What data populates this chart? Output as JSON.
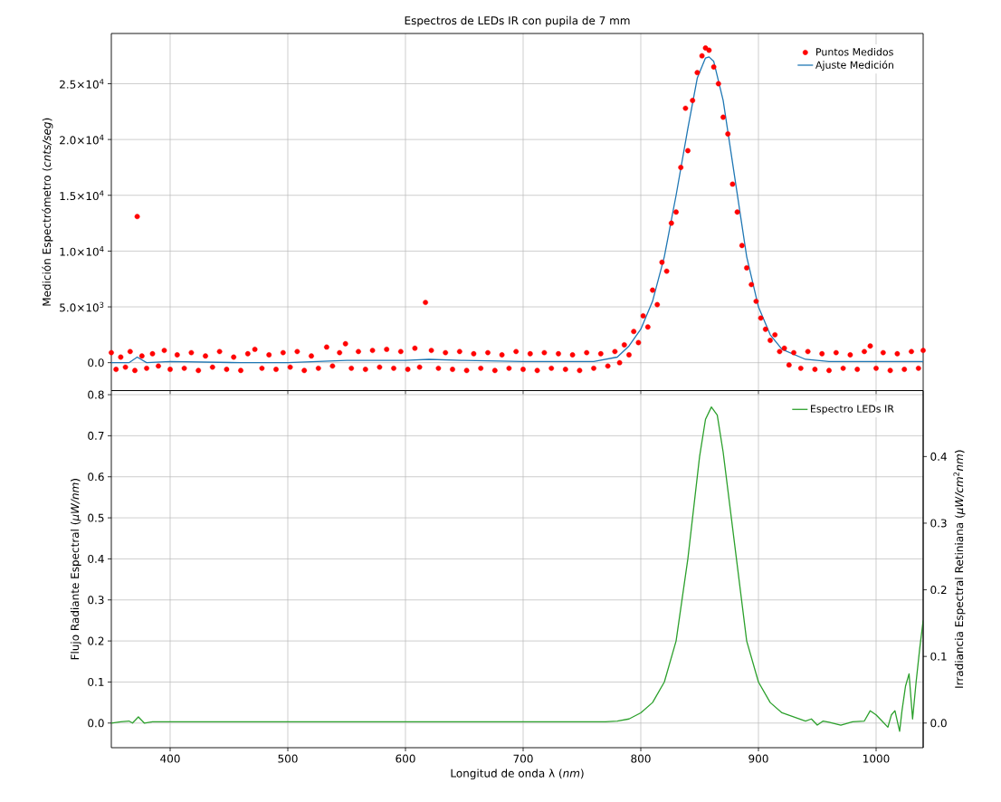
{
  "chart_data": [
    {
      "type": "scatter",
      "title": "Espectros de LEDs IR con pupila de 7 mm",
      "ylabel": "Medición Espectrómetro (*cnts/seg*)",
      "xlim": [
        350,
        1040
      ],
      "xticks": [
        400,
        500,
        600,
        700,
        800,
        900,
        1000
      ],
      "ylim": [
        -2500,
        29500
      ],
      "yticks": [
        {
          "value": 0,
          "label": "0.0"
        },
        {
          "value": 5000,
          "label": "5.0×10$^{3}$"
        },
        {
          "value": 10000,
          "label": "1.0×10$^{4}$"
        },
        {
          "value": 15000,
          "label": "1.5×10$^{4}$"
        },
        {
          "value": 20000,
          "label": "2.0×10$^{4}$"
        },
        {
          "value": 25000,
          "label": "2.5×10$^{4}$"
        }
      ],
      "tick_labels": "y",
      "grid": true,
      "legend": "top right",
      "series": [
        {
          "name": "Puntos Medidos",
          "type": "scatter",
          "color": "#ff0000",
          "x": [
            350,
            354,
            358,
            362,
            366,
            370,
            372,
            376,
            380,
            385,
            390,
            395,
            400,
            406,
            412,
            418,
            424,
            430,
            436,
            442,
            448,
            454,
            460,
            466,
            472,
            478,
            484,
            490,
            496,
            502,
            508,
            514,
            520,
            526,
            533,
            538,
            544,
            549,
            554,
            560,
            566,
            572,
            578,
            584,
            590,
            596,
            602,
            608,
            612,
            617,
            622,
            628,
            634,
            640,
            646,
            652,
            658,
            664,
            670,
            676,
            682,
            688,
            694,
            700,
            706,
            712,
            718,
            724,
            730,
            736,
            742,
            748,
            754,
            760,
            766,
            772,
            778,
            782,
            786,
            790,
            794,
            798,
            802,
            806,
            810,
            814,
            818,
            822,
            826,
            830,
            834,
            838,
            840,
            844,
            848,
            852,
            855,
            858,
            862,
            866,
            870,
            874,
            878,
            882,
            886,
            890,
            894,
            898,
            902,
            906,
            910,
            914,
            918,
            922,
            926,
            930,
            936,
            942,
            948,
            954,
            960,
            966,
            972,
            978,
            984,
            990,
            995,
            1000,
            1006,
            1012,
            1018,
            1024,
            1030,
            1036,
            1040
          ],
          "values": [
            900,
            -600,
            500,
            -400,
            1000,
            -700,
            13100,
            600,
            -500,
            800,
            -300,
            1100,
            -600,
            700,
            -500,
            900,
            -700,
            600,
            -400,
            1000,
            -600,
            500,
            -700,
            800,
            1200,
            -500,
            700,
            -600,
            900,
            -400,
            1000,
            -700,
            600,
            -500,
            1400,
            -300,
            900,
            1700,
            -500,
            1000,
            -600,
            1100,
            -400,
            1200,
            -500,
            1000,
            -600,
            1300,
            -400,
            5400,
            1100,
            -500,
            900,
            -600,
            1000,
            -700,
            800,
            -500,
            900,
            -700,
            700,
            -500,
            1000,
            -600,
            800,
            -700,
            900,
            -500,
            800,
            -600,
            700,
            -700,
            900,
            -500,
            800,
            -300,
            1000,
            0,
            1600,
            700,
            2800,
            1800,
            4200,
            3200,
            6500,
            5200,
            9000,
            8200,
            12500,
            13500,
            17500,
            22800,
            19000,
            23500,
            26000,
            27500,
            28200,
            28000,
            26500,
            25000,
            22000,
            20500,
            16000,
            13500,
            10500,
            8500,
            7000,
            5500,
            4000,
            3000,
            2000,
            2500,
            1000,
            1300,
            -200,
            900,
            -500,
            1000,
            -600,
            800,
            -700,
            900,
            -500,
            700,
            -600,
            1000,
            1500,
            -500,
            900,
            -700,
            800,
            -600,
            1000,
            -500,
            1100
          ]
        },
        {
          "name": "Ajuste Medición",
          "type": "line",
          "color": "#1f77b4",
          "x": [
            350,
            365,
            372,
            380,
            400,
            460,
            500,
            550,
            600,
            620,
            650,
            700,
            760,
            780,
            790,
            800,
            810,
            820,
            830,
            840,
            848,
            855,
            858,
            862,
            870,
            880,
            890,
            900,
            910,
            920,
            940,
            960,
            1000,
            1040
          ],
          "values": [
            0,
            0,
            500,
            0,
            100,
            0,
            0,
            200,
            200,
            300,
            200,
            100,
            100,
            500,
            1500,
            3000,
            5500,
            9500,
            15000,
            21000,
            25500,
            27300,
            27400,
            27000,
            23500,
            16500,
            9500,
            5000,
            2500,
            1200,
            300,
            100,
            100,
            100
          ]
        }
      ]
    },
    {
      "type": "line",
      "xlabel": "Longitud de onda λ (*nm*)",
      "ylabel": "Flujo Radiante Espectral (*μW/nm*)",
      "y2label": "Irradiancia Espectral Retiniana (*μW/cm*$^{2}$*nm*)",
      "xlim": [
        350,
        1040
      ],
      "xticks": [
        400,
        500,
        600,
        700,
        800,
        900,
        1000
      ],
      "ylim": [
        -0.06,
        0.81
      ],
      "yticks": [
        {
          "value": 0,
          "label": "0.0"
        },
        0.1,
        0.2,
        0.3,
        0.4,
        0.5,
        0.6,
        0.7,
        0.8
      ],
      "y2lim": [
        -0.037,
        0.499
      ],
      "y2ticks": [
        {
          "value": 0,
          "label": "0.0"
        },
        0.1,
        0.2,
        0.3,
        0.4
      ],
      "grid": true,
      "legend": "top right",
      "series": [
        {
          "name": "Espectro LEDs IR",
          "color": "#2ca02c",
          "x": [
            350,
            358,
            365,
            368,
            373,
            378,
            385,
            400,
            500,
            600,
            700,
            770,
            780,
            790,
            800,
            810,
            820,
            830,
            840,
            850,
            855,
            860,
            865,
            870,
            880,
            890,
            900,
            910,
            920,
            930,
            940,
            945,
            950,
            955,
            960,
            970,
            980,
            990,
            995,
            1000,
            1005,
            1010,
            1013,
            1016,
            1020,
            1022,
            1025,
            1028,
            1031,
            1034,
            1037,
            1040
          ],
          "values": [
            0,
            0.003,
            0.005,
            0,
            0.015,
            0,
            0.003,
            0.003,
            0.003,
            0.003,
            0.003,
            0.003,
            0.005,
            0.01,
            0.025,
            0.05,
            0.1,
            0.2,
            0.4,
            0.65,
            0.74,
            0.77,
            0.75,
            0.66,
            0.43,
            0.2,
            0.1,
            0.05,
            0.025,
            0.015,
            0.005,
            0.01,
            -0.005,
            0.005,
            0.002,
            -0.005,
            0.003,
            0.005,
            0.03,
            0.02,
            0.005,
            -0.01,
            0.02,
            0.03,
            -0.02,
            0.03,
            0.09,
            0.12,
            0.01,
            0.1,
            0.18,
            0.25
          ]
        }
      ]
    }
  ]
}
